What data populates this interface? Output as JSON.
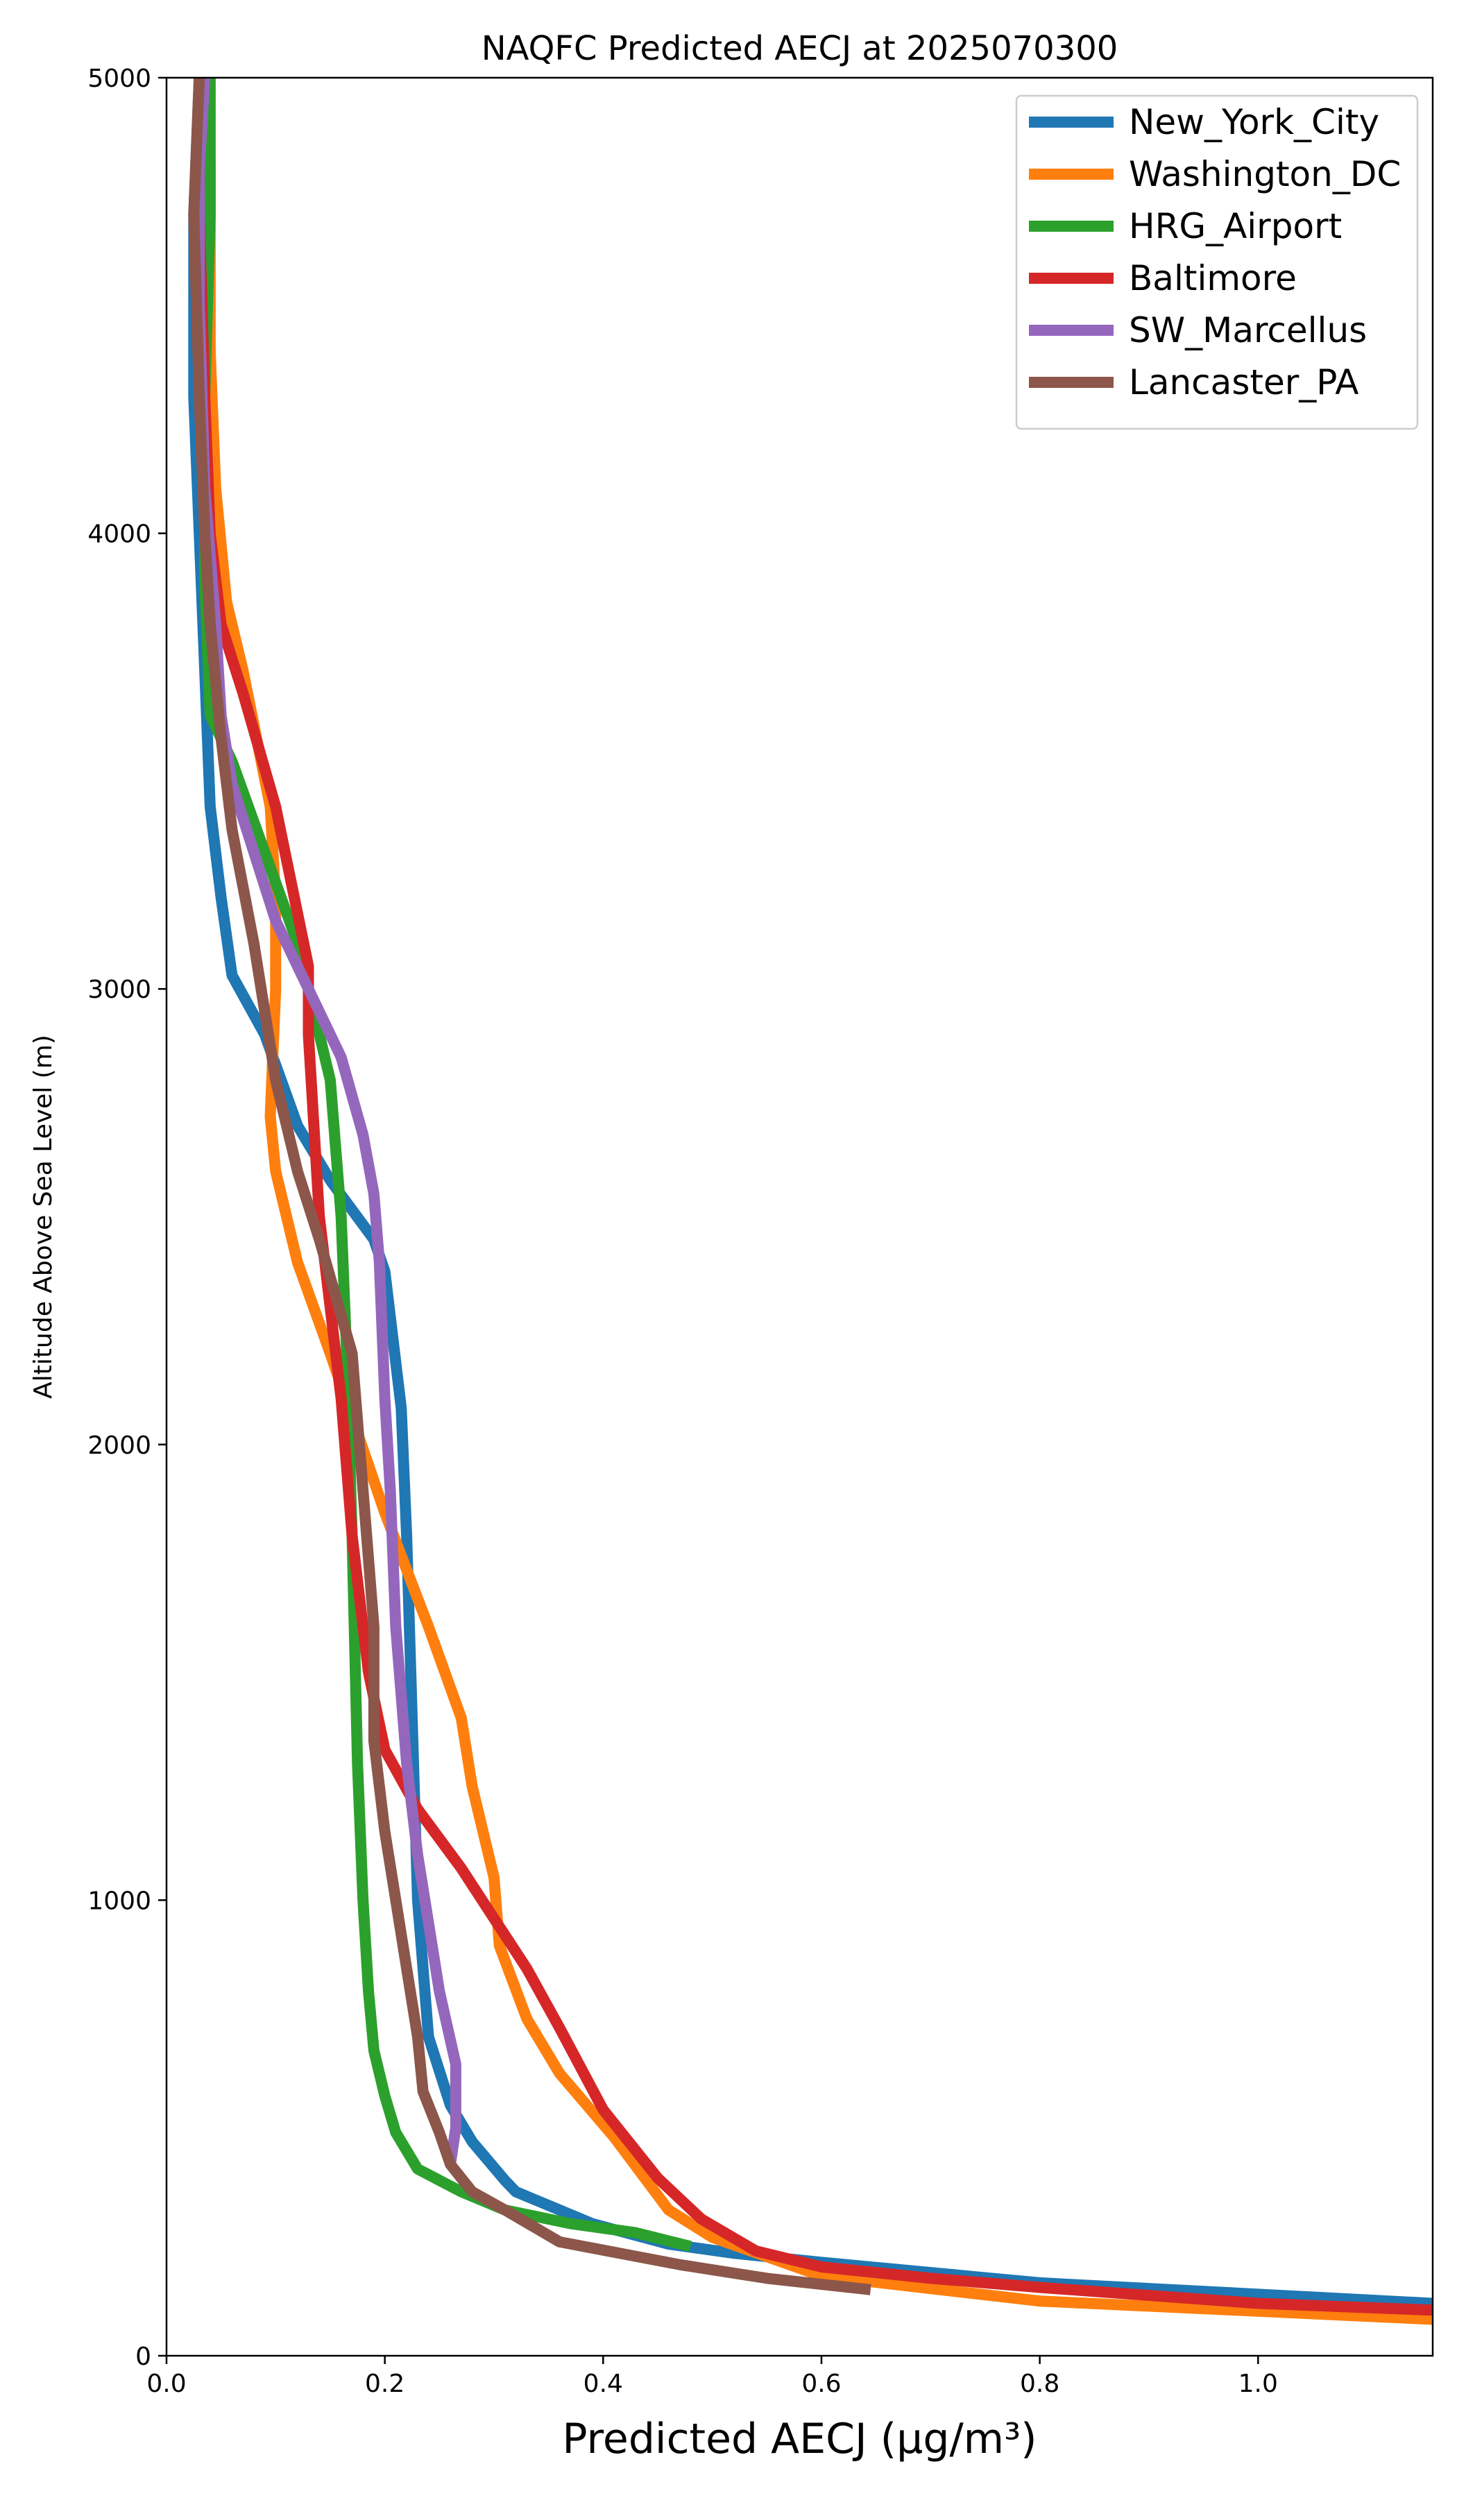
{
  "chart_data": {
    "type": "line",
    "title": "NAQFC Predicted AECJ at 2025070300",
    "xlabel": "Predicted AECJ (μg/m³)",
    "ylabel": "Altitude Above Sea Level (m)",
    "xlim": [
      0.0,
      1.16
    ],
    "ylim": [
      0,
      5000
    ],
    "x_ticks": [
      "0.0",
      "0.2",
      "0.4",
      "0.6",
      "0.8",
      "1.0"
    ],
    "y_ticks": [
      "0",
      "1000",
      "2000",
      "3000",
      "4000",
      "5000"
    ],
    "grid": false,
    "legend_position": "top-right",
    "series": [
      {
        "name": "New_York_City",
        "color": "#1f77b4",
        "points": [
          [
            1.16,
            115
          ],
          [
            0.8,
            160
          ],
          [
            0.6,
            205
          ],
          [
            0.52,
            225
          ],
          [
            0.46,
            245
          ],
          [
            0.39,
            290
          ],
          [
            0.32,
            360
          ],
          [
            0.31,
            385
          ],
          [
            0.28,
            470
          ],
          [
            0.26,
            550
          ],
          [
            0.24,
            700
          ],
          [
            0.23,
            1000
          ],
          [
            0.225,
            1400
          ],
          [
            0.22,
            1800
          ],
          [
            0.215,
            2080
          ],
          [
            0.2,
            2380
          ],
          [
            0.19,
            2450
          ],
          [
            0.15,
            2580
          ],
          [
            0.12,
            2700
          ],
          [
            0.09,
            2900
          ],
          [
            0.06,
            3030
          ],
          [
            0.05,
            3200
          ],
          [
            0.04,
            3400
          ],
          [
            0.035,
            3700
          ],
          [
            0.03,
            4000
          ],
          [
            0.025,
            4300
          ],
          [
            0.025,
            4700
          ],
          [
            0.03,
            5000
          ]
        ]
      },
      {
        "name": "Washington_DC",
        "color": "#ff7f0e",
        "points": [
          [
            1.16,
            80
          ],
          [
            0.8,
            120
          ],
          [
            0.6,
            175
          ],
          [
            0.5,
            260
          ],
          [
            0.46,
            320
          ],
          [
            0.41,
            480
          ],
          [
            0.36,
            620
          ],
          [
            0.33,
            740
          ],
          [
            0.305,
            900
          ],
          [
            0.3,
            1050
          ],
          [
            0.28,
            1250
          ],
          [
            0.27,
            1400
          ],
          [
            0.24,
            1600
          ],
          [
            0.2,
            1850
          ],
          [
            0.15,
            2200
          ],
          [
            0.12,
            2400
          ],
          [
            0.1,
            2600
          ],
          [
            0.095,
            2720
          ],
          [
            0.1,
            3000
          ],
          [
            0.1,
            3200
          ],
          [
            0.095,
            3400
          ],
          [
            0.07,
            3700
          ],
          [
            0.055,
            3850
          ],
          [
            0.045,
            4100
          ],
          [
            0.04,
            4400
          ],
          [
            0.04,
            4800
          ],
          [
            0.035,
            5000
          ]
        ]
      },
      {
        "name": "HRG_Airport",
        "color": "#2ca02c",
        "points": [
          [
            0.48,
            240
          ],
          [
            0.43,
            270
          ],
          [
            0.37,
            290
          ],
          [
            0.31,
            320
          ],
          [
            0.27,
            360
          ],
          [
            0.23,
            410
          ],
          [
            0.21,
            490
          ],
          [
            0.2,
            570
          ],
          [
            0.19,
            670
          ],
          [
            0.185,
            800
          ],
          [
            0.18,
            1000
          ],
          [
            0.175,
            1300
          ],
          [
            0.17,
            1800
          ],
          [
            0.165,
            2200
          ],
          [
            0.16,
            2500
          ],
          [
            0.15,
            2800
          ],
          [
            0.12,
            3100
          ],
          [
            0.09,
            3300
          ],
          [
            0.06,
            3500
          ],
          [
            0.04,
            3600
          ],
          [
            0.035,
            3900
          ],
          [
            0.035,
            4300
          ],
          [
            0.04,
            4700
          ],
          [
            0.04,
            5000
          ]
        ]
      },
      {
        "name": "Baltimore",
        "color": "#d62728",
        "points": [
          [
            1.16,
            100
          ],
          [
            1.0,
            115
          ],
          [
            0.8,
            150
          ],
          [
            0.7,
            170
          ],
          [
            0.6,
            195
          ],
          [
            0.54,
            230
          ],
          [
            0.49,
            300
          ],
          [
            0.45,
            390
          ],
          [
            0.4,
            540
          ],
          [
            0.36,
            720
          ],
          [
            0.33,
            850
          ],
          [
            0.3,
            960
          ],
          [
            0.27,
            1070
          ],
          [
            0.23,
            1200
          ],
          [
            0.2,
            1330
          ],
          [
            0.185,
            1500
          ],
          [
            0.17,
            1800
          ],
          [
            0.16,
            2100
          ],
          [
            0.14,
            2500
          ],
          [
            0.13,
            2900
          ],
          [
            0.13,
            3050
          ],
          [
            0.1,
            3400
          ],
          [
            0.07,
            3650
          ],
          [
            0.05,
            3800
          ],
          [
            0.04,
            4000
          ],
          [
            0.035,
            4300
          ],
          [
            0.03,
            4700
          ],
          [
            0.03,
            5000
          ]
        ]
      },
      {
        "name": "SW_Marcellus",
        "color": "#9467bd",
        "points": [
          [
            0.26,
            420
          ],
          [
            0.265,
            500
          ],
          [
            0.265,
            640
          ],
          [
            0.25,
            800
          ],
          [
            0.24,
            950
          ],
          [
            0.23,
            1100
          ],
          [
            0.22,
            1300
          ],
          [
            0.21,
            1600
          ],
          [
            0.205,
            1900
          ],
          [
            0.2,
            2100
          ],
          [
            0.195,
            2400
          ],
          [
            0.19,
            2550
          ],
          [
            0.18,
            2680
          ],
          [
            0.16,
            2850
          ],
          [
            0.13,
            3000
          ],
          [
            0.1,
            3150
          ],
          [
            0.08,
            3300
          ],
          [
            0.06,
            3450
          ],
          [
            0.05,
            3600
          ],
          [
            0.045,
            3800
          ],
          [
            0.035,
            4100
          ],
          [
            0.03,
            4500
          ],
          [
            0.03,
            4800
          ],
          [
            0.035,
            5000
          ]
        ]
      },
      {
        "name": "Lancaster_PA",
        "color": "#8c564b",
        "points": [
          [
            0.645,
            145
          ],
          [
            0.55,
            170
          ],
          [
            0.47,
            200
          ],
          [
            0.36,
            250
          ],
          [
            0.31,
            320
          ],
          [
            0.28,
            360
          ],
          [
            0.26,
            420
          ],
          [
            0.25,
            490
          ],
          [
            0.235,
            580
          ],
          [
            0.23,
            700
          ],
          [
            0.22,
            850
          ],
          [
            0.21,
            1000
          ],
          [
            0.2,
            1150
          ],
          [
            0.19,
            1350
          ],
          [
            0.19,
            1600
          ],
          [
            0.18,
            1900
          ],
          [
            0.17,
            2200
          ],
          [
            0.14,
            2450
          ],
          [
            0.12,
            2600
          ],
          [
            0.1,
            2800
          ],
          [
            0.08,
            3100
          ],
          [
            0.06,
            3350
          ],
          [
            0.05,
            3550
          ],
          [
            0.04,
            3800
          ],
          [
            0.035,
            4000
          ],
          [
            0.03,
            4300
          ],
          [
            0.025,
            4700
          ],
          [
            0.03,
            5000
          ]
        ]
      }
    ]
  }
}
